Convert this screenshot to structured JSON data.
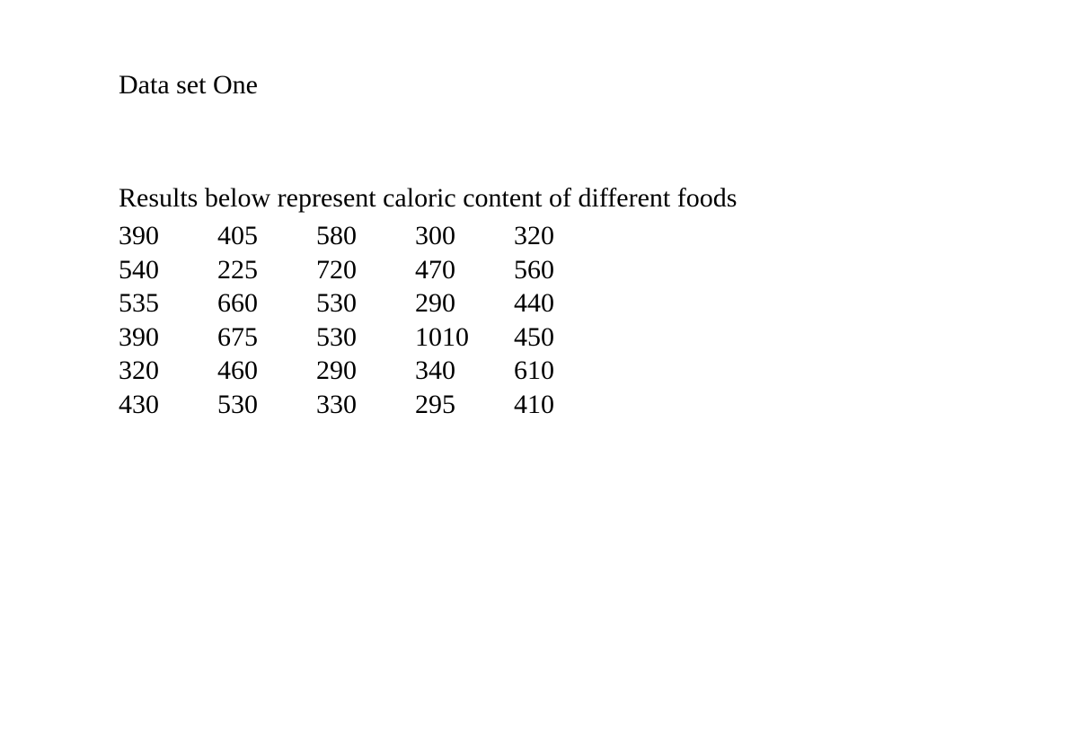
{
  "title": "Data set One",
  "description": "Results below represent caloric content of different foods",
  "table": {
    "type": "table",
    "rows": [
      [
        "390",
        "405",
        "580",
        "300",
        "320"
      ],
      [
        "540",
        "225",
        "720",
        "470",
        "560"
      ],
      [
        "535",
        "660",
        "530",
        "290",
        "440"
      ],
      [
        "390",
        "675",
        "530",
        "1010",
        "450"
      ],
      [
        "320",
        "460",
        "290",
        "340",
        "610"
      ],
      [
        "430",
        "530",
        "330",
        "295",
        "410"
      ]
    ],
    "text_color": "#000000",
    "background_color": "#ffffff",
    "font_family": "Times New Roman",
    "font_size_pt": 22,
    "column_count": 5,
    "row_count": 6,
    "cell_alignment": "left"
  }
}
